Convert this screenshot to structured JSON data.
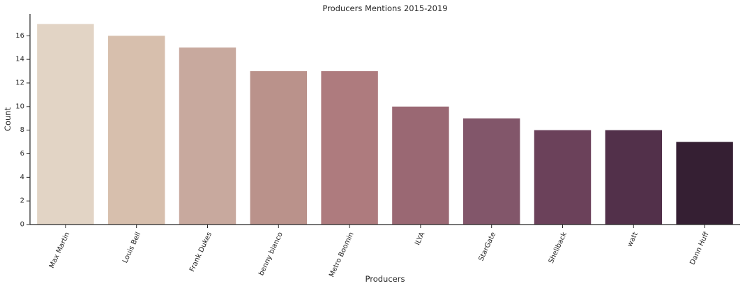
{
  "chart_data": {
    "type": "bar",
    "title": "Producers Mentions 2015-2019",
    "xlabel": "Producers",
    "ylabel": "Count",
    "categories": [
      "Max Martin",
      "Louis Bell",
      "Frank Dukes",
      "benny blanco",
      "Metro Boomin",
      "ILYA",
      "StarGate",
      "Shellback",
      "watt",
      "Dann Huff"
    ],
    "values": [
      17,
      16,
      15,
      13,
      13,
      10,
      9,
      8,
      8,
      7
    ],
    "colors": [
      "#e2d4c5",
      "#d7bfad",
      "#c8a99e",
      "#ba928b",
      "#ae7b7e",
      "#9a6873",
      "#82566a",
      "#6b415a",
      "#52304a",
      "#351f33"
    ],
    "yticks": [
      0,
      2,
      4,
      6,
      8,
      10,
      12,
      14,
      16
    ],
    "ylim": [
      0,
      17.85
    ],
    "grid": false,
    "legend": "none"
  }
}
